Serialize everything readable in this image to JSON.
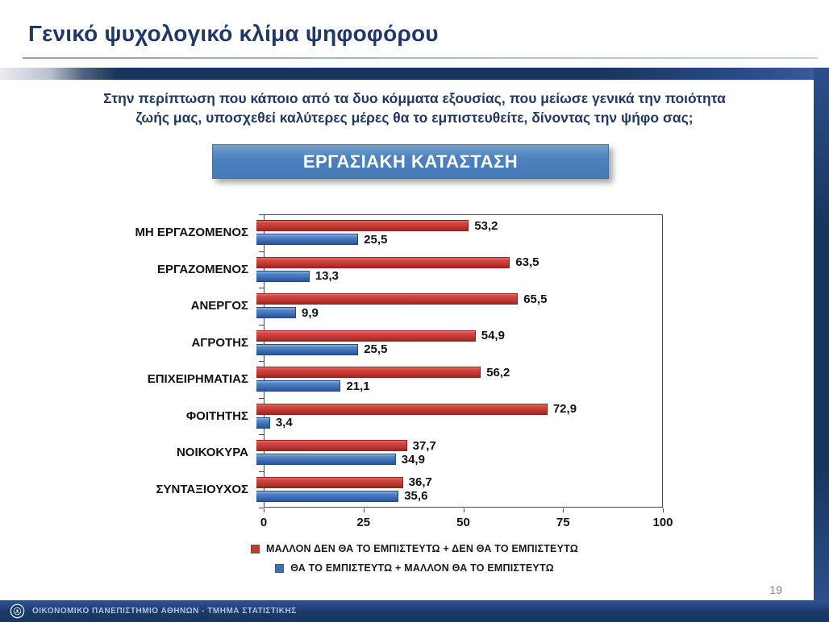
{
  "slide": {
    "title": "Γενικό ψυχολογικό κλίμα ψηφοφόρου",
    "question_line1": "Στην περίπτωση που κάποιο από τα δυο κόμματα εξουσίας, που μείωσε γενικά την ποιότητα",
    "question_line2": "ζωής μας, υποσχεθεί καλύτερες μέρες θα το εμπιστευθείτε, δίνοντας την ψήφο σας;",
    "section_header": "ΕΡΓΑΣΙΑΚΗ ΚΑΤΑΣΤΑΣΗ",
    "page_number": "19",
    "footer_text": "ΟΙΚΟΝΟΜΙΚΟ ΠΑΝΕΠΙΣΤΗΜΙΟ ΑΘΗΝΩΝ - ΤΜΗΜΑ ΣΤΑΤΙΣΤΙΚΗΣ"
  },
  "colors": {
    "title_navy": "#1F3864",
    "band_navy": "#17365D",
    "section_box_blue": "#4F81BD",
    "bar_red": "#C63A35",
    "bar_blue": "#3F6FB5"
  },
  "chart_data": {
    "type": "bar",
    "orientation": "horizontal",
    "title": "ΕΡΓΑΣΙΑΚΗ ΚΑΤΑΣΤΑΣΗ",
    "categories": [
      "ΜΗ ΕΡΓΑΖΟΜΕΝΟΣ",
      "ΕΡΓΑΖΟΜΕΝΟΣ",
      "ΑΝΕΡΓΟΣ",
      "ΑΓΡΟΤΗΣ",
      "ΕΠΙΧΕΙΡΗΜΑΤΙΑΣ",
      "ΦΟΙΤΗΤΗΣ",
      "ΝΟΙΚΟΚΥΡΑ",
      "ΣΥΝΤΑΞΙΟΥΧΟΣ"
    ],
    "series": [
      {
        "name": "ΜΑΛΛΟΝ ΔΕΝ ΘΑ ΤΟ ΕΜΠΙΣΤΕΥΤΩ + ΔΕΝ ΘΑ ΤΟ ΕΜΠΙΣΤΕΥΤΩ",
        "color": "#C63A35",
        "values": [
          53.2,
          63.5,
          65.5,
          54.9,
          56.2,
          72.9,
          37.7,
          36.7
        ],
        "labels": [
          "53,2",
          "63,5",
          "65,5",
          "54,9",
          "56,2",
          "72,9",
          "37,7",
          "36,7"
        ]
      },
      {
        "name": "ΘΑ ΤΟ ΕΜΠΙΣΤΕΥΤΩ + ΜΑΛΛΟΝ ΘΑ ΤΟ ΕΜΠΙΣΤΕΥΤΩ",
        "color": "#3F6FB5",
        "values": [
          25.5,
          13.3,
          9.9,
          25.5,
          21.1,
          3.4,
          34.9,
          35.6
        ],
        "labels": [
          "25,5",
          "13,3",
          "9,9",
          "25,5",
          "21,1",
          "3,4",
          "34,9",
          "35,6"
        ]
      }
    ],
    "xlim": [
      0,
      100
    ],
    "x_ticks": [
      "0",
      "25",
      "50",
      "75",
      "100"
    ],
    "grid": false,
    "legend_position": "bottom"
  }
}
